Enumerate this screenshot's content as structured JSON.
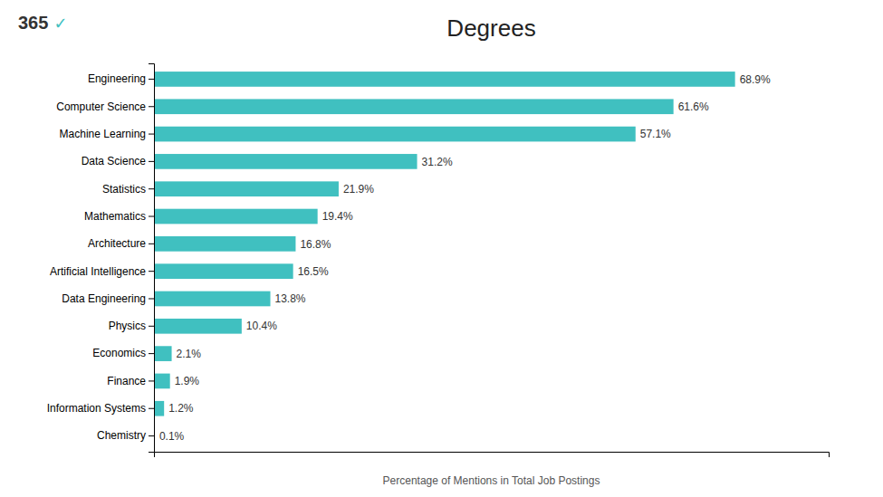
{
  "chart_data": {
    "type": "bar",
    "orientation": "horizontal",
    "title": "Degrees",
    "xlabel": "Percentage of Mentions in Total Job Postings",
    "categories": [
      "Engineering",
      "Computer Science",
      "Machine Learning",
      "Data Science",
      "Statistics",
      "Mathematics",
      "Architecture",
      "Artificial Intelligence",
      "Data Engineering",
      "Physics",
      "Economics",
      "Finance",
      "Information Systems",
      "Chemistry"
    ],
    "values": [
      68.9,
      61.6,
      57.1,
      31.2,
      21.9,
      19.4,
      16.8,
      16.5,
      13.8,
      10.4,
      2.1,
      1.9,
      1.2,
      0.1
    ],
    "value_labels": [
      "68.9%",
      "61.6%",
      "57.1%",
      "31.2%",
      "21.9%",
      "19.4%",
      "16.8%",
      "16.5%",
      "13.8%",
      "10.4%",
      "2.1%",
      "1.9%",
      "1.2%",
      "0.1%"
    ],
    "data_labels": true,
    "color": "#40c0c0",
    "xlim": [
      0,
      80
    ],
    "xticks": [],
    "tick_labels": "y",
    "grid": false,
    "annotations": [
      "365",
      "✓"
    ]
  }
}
